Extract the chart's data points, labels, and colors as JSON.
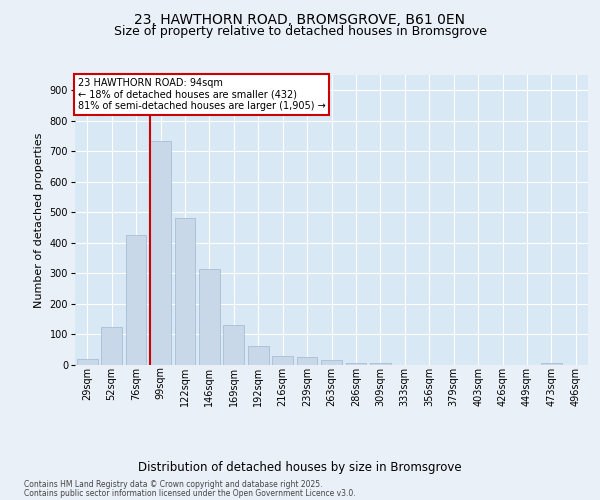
{
  "title_line1": "23, HAWTHORN ROAD, BROMSGROVE, B61 0EN",
  "title_line2": "Size of property relative to detached houses in Bromsgrove",
  "xlabel": "Distribution of detached houses by size in Bromsgrove",
  "ylabel": "Number of detached properties",
  "categories": [
    "29sqm",
    "52sqm",
    "76sqm",
    "99sqm",
    "122sqm",
    "146sqm",
    "169sqm",
    "192sqm",
    "216sqm",
    "239sqm",
    "263sqm",
    "286sqm",
    "309sqm",
    "333sqm",
    "356sqm",
    "379sqm",
    "403sqm",
    "426sqm",
    "449sqm",
    "473sqm",
    "496sqm"
  ],
  "values": [
    20,
    125,
    425,
    735,
    480,
    315,
    130,
    63,
    30,
    25,
    18,
    8,
    8,
    0,
    0,
    0,
    0,
    0,
    0,
    8,
    0
  ],
  "bar_color": "#c8d8e8",
  "bar_edge_color": "#a0b8d0",
  "vline_color": "#cc0000",
  "vline_x_index": 3,
  "annotation_text": "23 HAWTHORN ROAD: 94sqm\n← 18% of detached houses are smaller (432)\n81% of semi-detached houses are larger (1,905) →",
  "annotation_box_color": "#ffffff",
  "annotation_box_edge": "#cc0000",
  "ylim": [
    0,
    950
  ],
  "yticks": [
    0,
    100,
    200,
    300,
    400,
    500,
    600,
    700,
    800,
    900
  ],
  "footer_line1": "Contains HM Land Registry data © Crown copyright and database right 2025.",
  "footer_line2": "Contains public sector information licensed under the Open Government Licence v3.0.",
  "bg_color": "#eaf0f8",
  "plot_bg_color": "#d8e8f4",
  "grid_color": "#ffffff",
  "title_fontsize": 10,
  "subtitle_fontsize": 9,
  "ylabel_fontsize": 8,
  "xlabel_fontsize": 8.5,
  "tick_fontsize": 7,
  "annot_fontsize": 7,
  "footer_fontsize": 5.5
}
